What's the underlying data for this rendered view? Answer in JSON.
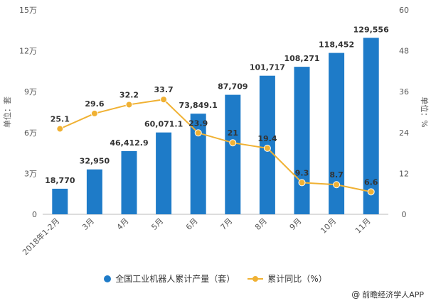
{
  "chart_data": {
    "type": "bar+line",
    "categories": [
      "2018年1-2月",
      "3月",
      "4月",
      "5月",
      "6月",
      "7月",
      "8月",
      "9月",
      "10月",
      "11月"
    ],
    "series": [
      {
        "name": "全国工业机器人累计产量（套）",
        "type": "bar",
        "axis": "left",
        "values": [
          18770,
          32950,
          46412.9,
          60071.1,
          73849.1,
          87709,
          101717,
          108271,
          118452,
          129556
        ],
        "labels": [
          "18,770",
          "32,950",
          "46,412.9",
          "60,071.1",
          "73,849.1",
          "87,709",
          "101,717",
          "108,271",
          "118,452",
          "129,556"
        ]
      },
      {
        "name": "累计同比（%）",
        "type": "line",
        "axis": "right",
        "values": [
          25.1,
          29.6,
          32.2,
          33.7,
          23.9,
          21,
          19.4,
          9.3,
          8.7,
          6.6
        ],
        "labels": [
          "25.1",
          "29.6",
          "32.2",
          "33.7",
          "23.9",
          "21",
          "19.4",
          "9.3",
          "8.7",
          "6.6"
        ]
      }
    ],
    "y_left": {
      "label": "单位：套",
      "ylim": [
        0,
        150000
      ],
      "ticks": [
        0,
        30000,
        60000,
        90000,
        120000,
        150000
      ],
      "tick_labels": [
        "0",
        "3万",
        "6万",
        "9万",
        "12万",
        "15万"
      ]
    },
    "y_right": {
      "label": "单位：%",
      "ylim": [
        0,
        60
      ],
      "ticks": [
        0,
        12,
        24,
        36,
        48,
        60
      ],
      "tick_labels": [
        "0",
        "12",
        "24",
        "36",
        "48",
        "60"
      ]
    },
    "grid": false,
    "legend_position": "bottom",
    "colors": {
      "bar": "#1e7bc8",
      "line": "#f0b133"
    }
  },
  "legend": {
    "bar_label": "全国工业机器人累计产量（套）",
    "line_label": "累计同比（%）"
  },
  "source": {
    "text": "前瞻经济学人APP",
    "icon": "weibo-icon"
  }
}
